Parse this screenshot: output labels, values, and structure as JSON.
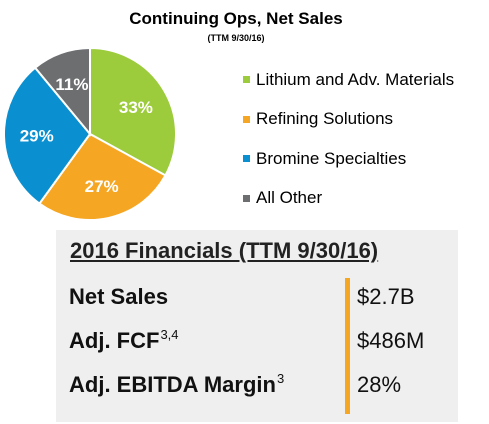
{
  "chart_data": {
    "type": "pie",
    "title": "Continuing Ops, Net Sales",
    "subtitle": "(TTM 9/30/16)",
    "slices": [
      {
        "name": "Lithium and Adv. Materials",
        "value": 33,
        "label": "33%",
        "color": "#9ccb3b"
      },
      {
        "name": "Refining Solutions",
        "value": 27,
        "label": "27%",
        "color": "#f5a623"
      },
      {
        "name": "Bromine Specialties",
        "value": 29,
        "label": "29%",
        "color": "#0a8fd0"
      },
      {
        "name": "All Other",
        "value": 11,
        "label": "11%",
        "color": "#6d6e70"
      }
    ],
    "legend_position": "right"
  },
  "financials": {
    "title": "2016 Financials (TTM 9/30/16)",
    "rows": [
      {
        "label": "Net Sales",
        "sup": "",
        "value": "$2.7B"
      },
      {
        "label": "Adj. FCF",
        "sup": "3,4",
        "value": "$486M"
      },
      {
        "label": "Adj. EBITDA Margin",
        "sup": "3",
        "value": "28%"
      }
    ],
    "accent_color": "#f5a623"
  }
}
